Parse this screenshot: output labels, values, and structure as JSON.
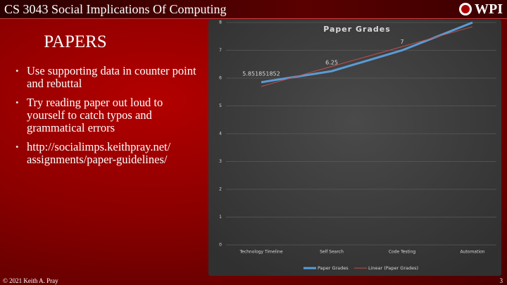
{
  "header": {
    "title": "CS 3043 Social Implications Of Computing",
    "logo": "WPI"
  },
  "slide": {
    "heading": "PAPERS",
    "bullets": [
      "Use supporting data in counter point and rebuttal",
      "Try reading paper out loud to yourself to catch typos and grammatical errors",
      "http://socialimps.keithpray.net/ assignments/paper-guidelines/"
    ]
  },
  "footer": {
    "copyright": "© 2021 Keith A. Pray",
    "page": "3"
  },
  "chart_data": {
    "type": "line",
    "title": "Paper Grades",
    "categories": [
      "Technology Timeline",
      "Self Search",
      "Code Testing",
      "Automation"
    ],
    "series": [
      {
        "name": "Paper Grades",
        "color": "#5b9bd5",
        "values": [
          5.851851852,
          6.25,
          7,
          8
        ],
        "data_labels": true
      },
      {
        "name": "Linear (Paper Grades)",
        "color": "#c0504d",
        "values": [
          5.7,
          6.42,
          7.13,
          7.85
        ]
      }
    ],
    "ylim": [
      0,
      8
    ],
    "yticks": [
      0,
      1,
      2,
      3,
      4,
      5,
      6,
      7,
      8
    ],
    "grid": true
  }
}
